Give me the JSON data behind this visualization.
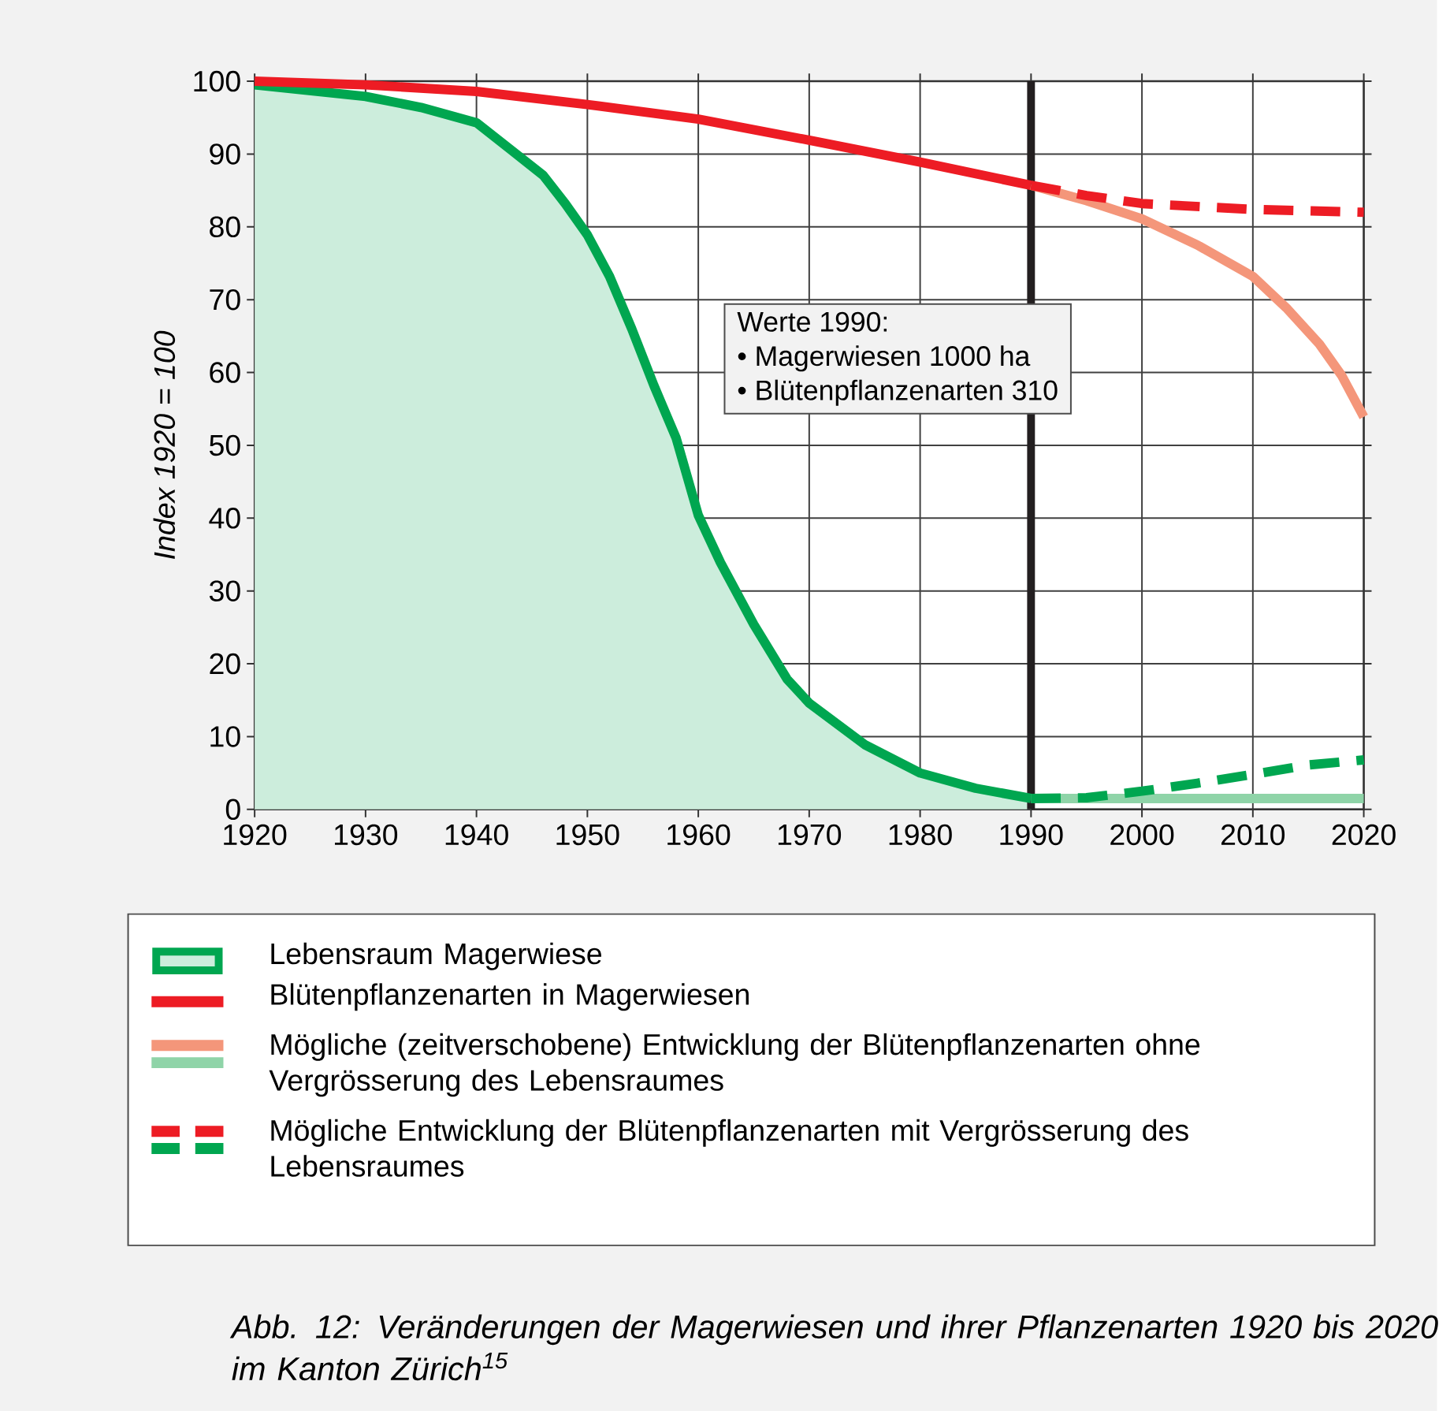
{
  "chart_data": {
    "type": "line",
    "ylabel": "Index 1920 = 100",
    "xlim": [
      1920,
      2020
    ],
    "ylim": [
      0,
      100
    ],
    "xticks": [
      1920,
      1930,
      1940,
      1950,
      1960,
      1970,
      1980,
      1990,
      2000,
      2010,
      2020
    ],
    "yticks": [
      0,
      10,
      20,
      30,
      40,
      50,
      60,
      70,
      80,
      90,
      100
    ],
    "grid": true,
    "legend": "bottom",
    "marker": "none",
    "ref_lines": [
      {
        "axis": "x",
        "value": 1990,
        "color": "#231f20"
      }
    ],
    "annotations": [
      "Werte 1990:",
      "• Magerwiesen  1000 ha",
      "• Blütenpflanzenarten  310",
      "Abb. 12:  Veränderungen der Magerwiesen und ihrer Pflanzenarten 1920 bis 2020 im Kanton Zürich$^{15}$"
    ],
    "series": [
      {
        "name": "Lebensraum Magerwiese",
        "type": "area",
        "color": "#00a650",
        "x": [
          1920,
          1930,
          1935,
          1940,
          1943,
          1946,
          1948,
          1950,
          1952,
          1954,
          1956,
          1958,
          1960,
          1962,
          1965,
          1968,
          1970,
          1975,
          1980,
          1985,
          1990
        ],
        "values": [
          99.5,
          97.9,
          96.4,
          94.3,
          90.7,
          87.1,
          83.2,
          78.9,
          73.2,
          66,
          58.2,
          51,
          40.4,
          33.9,
          25.4,
          17.9,
          14.6,
          8.9,
          5,
          2.9,
          1.5
        ]
      },
      {
        "name": "Blütenpflanzenarten in Magerwiesen",
        "color": "#ed1c24",
        "x": [
          1920,
          1930,
          1940,
          1950,
          1960,
          1970,
          1980,
          1990
        ],
        "values": [
          100,
          99.5,
          98.6,
          96.8,
          94.8,
          91.9,
          88.9,
          85.7
        ]
      },
      {
        "name": "Mögliche (zeitverschobene) Entwicklung der Blütenpflanzenarten ohne Vergrösserung des Lebensraumes",
        "color": "#f4967a",
        "x": [
          1990,
          1995,
          2000,
          2005,
          2010,
          2013,
          2016,
          2018,
          2020
        ],
        "values": [
          85.7,
          83.6,
          81.1,
          77.5,
          73.2,
          68.9,
          63.9,
          59.6,
          53.9
        ]
      },
      {
        "color": "#8fd4a8",
        "x": [
          1990,
          2020
        ],
        "values": [
          1.5,
          1.5
        ]
      },
      {
        "name": "Mögliche Entwicklung der Blütenpflanzenarten mit Vergrösserung des Lebensraumes",
        "line_style": "dashed",
        "color": "#ed1c24",
        "x": [
          1990,
          1995,
          2000,
          2010,
          2020
        ],
        "values": [
          85.7,
          84.3,
          83.2,
          82.4,
          82
        ]
      },
      {
        "line_style": "dashed",
        "color": "#00a650",
        "x": [
          1990,
          1995,
          2000,
          2005,
          2010,
          2015,
          2020
        ],
        "values": [
          1.5,
          1.6,
          2.5,
          3.6,
          4.8,
          6.1,
          6.8
        ]
      }
    ]
  }
}
